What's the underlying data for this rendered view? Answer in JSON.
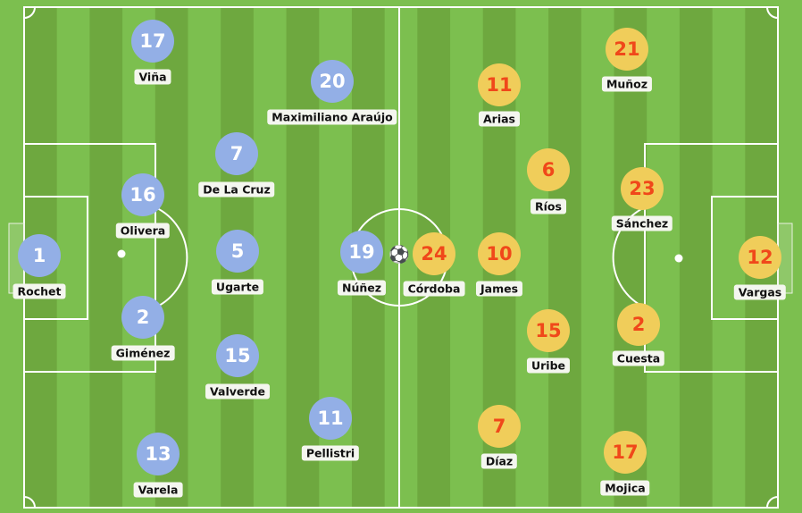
{
  "colors": {
    "grass_light": "#7cbf4f",
    "grass_dark": "#6ea83f",
    "lines": "#ffffff",
    "team_left": "#93afe6",
    "team_left_number": "#ffffff",
    "team_right": "#f0cd5a",
    "team_right_number": "#f0481a"
  },
  "ball_icon": "soccer-ball-icon",
  "teams": [
    {
      "side": "left",
      "players": [
        {
          "number": "17",
          "name": "Viña"
        },
        {
          "number": "20",
          "name": "Maximiliano Araújo"
        },
        {
          "number": "7",
          "name": "De La Cruz"
        },
        {
          "number": "16",
          "name": "Olivera"
        },
        {
          "number": "1",
          "name": "Rochet"
        },
        {
          "number": "5",
          "name": "Ugarte"
        },
        {
          "number": "19",
          "name": "Núñez"
        },
        {
          "number": "2",
          "name": "Giménez"
        },
        {
          "number": "15",
          "name": "Valverde"
        },
        {
          "number": "11",
          "name": "Pellistri"
        },
        {
          "number": "13",
          "name": "Varela"
        }
      ]
    },
    {
      "side": "right",
      "players": [
        {
          "number": "11",
          "name": "Arias"
        },
        {
          "number": "21",
          "name": "Muñoz"
        },
        {
          "number": "6",
          "name": "Ríos"
        },
        {
          "number": "23",
          "name": "Sánchez"
        },
        {
          "number": "24",
          "name": "Córdoba"
        },
        {
          "number": "10",
          "name": "James"
        },
        {
          "number": "12",
          "name": "Vargas"
        },
        {
          "number": "15",
          "name": "Uribe"
        },
        {
          "number": "2",
          "name": "Cuesta"
        },
        {
          "number": "7",
          "name": "Díaz"
        },
        {
          "number": "17",
          "name": "Mojica"
        }
      ]
    }
  ]
}
